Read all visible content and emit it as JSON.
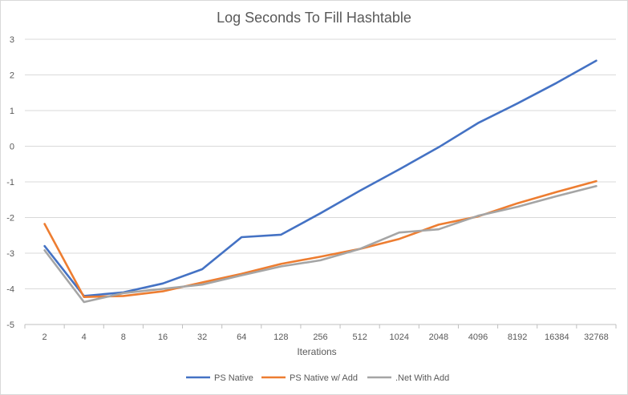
{
  "chart_data": {
    "type": "line",
    "title": "Log Seconds To Fill Hashtable",
    "xlabel": "Iterations",
    "ylabel": "",
    "categories": [
      "2",
      "4",
      "8",
      "16",
      "32",
      "64",
      "128",
      "256",
      "512",
      "1024",
      "2048",
      "4096",
      "8192",
      "16384",
      "32768"
    ],
    "ylim": [
      -5,
      3
    ],
    "yticks": [
      "3",
      "2",
      "1",
      "0",
      "-1",
      "-2",
      "-3",
      "-4",
      "-5"
    ],
    "grid": true,
    "legend_position": "bottom",
    "series": [
      {
        "name": "PS Native",
        "color": "#4472C4",
        "values": [
          -2.8,
          -4.2,
          -4.1,
          -3.85,
          -3.45,
          -2.55,
          -2.48,
          -1.88,
          -1.25,
          -0.65,
          -0.03,
          0.65,
          1.2,
          1.78,
          2.4
        ]
      },
      {
        "name": "PS Native w/ Add",
        "color": "#ED7D31",
        "values": [
          -2.18,
          -4.23,
          -4.2,
          -4.07,
          -3.82,
          -3.58,
          -3.3,
          -3.1,
          -2.88,
          -2.6,
          -2.2,
          -1.97,
          -1.6,
          -1.28,
          -0.98
        ]
      },
      {
        "name": ".Net With Add",
        "color": "#A5A5A5",
        "values": [
          -2.92,
          -4.37,
          -4.12,
          -4.0,
          -3.88,
          -3.62,
          -3.37,
          -3.2,
          -2.88,
          -2.42,
          -2.33,
          -1.95,
          -1.7,
          -1.4,
          -1.12
        ]
      }
    ]
  }
}
